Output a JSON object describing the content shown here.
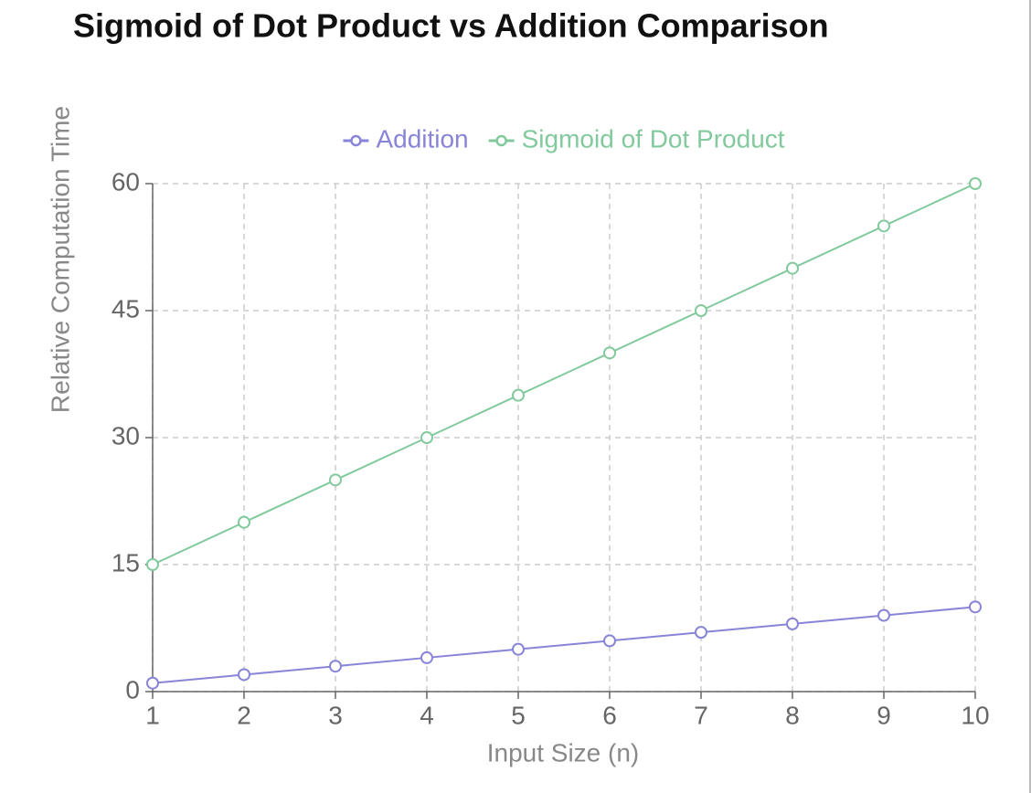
{
  "chart_data": {
    "type": "line",
    "title": "Sigmoid of Dot Product vs Addition Comparison",
    "x_label": "Input Size (n)",
    "y_label": "Relative Computation Time",
    "x": [
      1,
      2,
      3,
      4,
      5,
      6,
      7,
      8,
      9,
      10
    ],
    "series": [
      {
        "name": "Addition",
        "color": "#8884d8",
        "values": [
          1,
          2,
          3,
          4,
          5,
          6,
          7,
          8,
          9,
          10
        ]
      },
      {
        "name": "Sigmoid of Dot Product",
        "color": "#82ca9d",
        "values": [
          15,
          20,
          25,
          30,
          35,
          40,
          45,
          50,
          55,
          60
        ]
      }
    ],
    "xlim": [
      1,
      10
    ],
    "xticks": [
      1,
      2,
      3,
      4,
      5,
      6,
      7,
      8,
      9,
      10
    ],
    "ylim": [
      0,
      60
    ],
    "yticks": [
      0,
      15,
      30,
      45,
      60
    ],
    "grid": true,
    "legend": "top"
  }
}
